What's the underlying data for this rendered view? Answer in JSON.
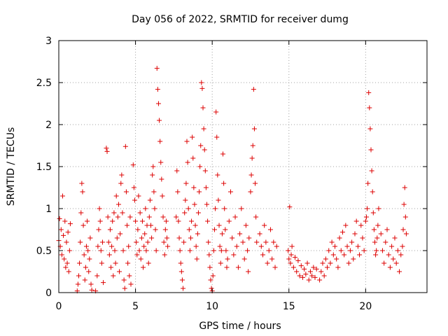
{
  "chart_data": {
    "type": "scatter",
    "title": "Day 056 of 2022, SRMTID for receiver dumg",
    "xlabel": "GPS time / hours",
    "ylabel": "SRMTID / TECUs",
    "xlim": [
      0,
      24
    ],
    "ylim": [
      0,
      3
    ],
    "xticks": [
      0,
      5,
      10,
      15,
      20
    ],
    "xtick_labels": [
      "0",
      "5",
      "10",
      "15",
      "20"
    ],
    "yticks": [
      0,
      0.5,
      1,
      1.5,
      2,
      2.5,
      3
    ],
    "ytick_labels": [
      "0",
      "0.5",
      "1",
      "1.5",
      "2",
      "2.5",
      "3"
    ],
    "grid": true,
    "marker": "plus",
    "color": "#dd0000",
    "series": [
      {
        "name": "SRMTID",
        "points": [
          [
            0.0,
            0.62
          ],
          [
            0.05,
            0.88
          ],
          [
            0.1,
            0.55
          ],
          [
            0.15,
            0.75
          ],
          [
            0.2,
            0.45
          ],
          [
            0.25,
            1.15
          ],
          [
            0.3,
            0.68
          ],
          [
            0.35,
            0.4
          ],
          [
            0.4,
            0.85
          ],
          [
            0.45,
            0.3
          ],
          [
            0.5,
            0.6
          ],
          [
            0.55,
            0.35
          ],
          [
            0.6,
            0.72
          ],
          [
            0.65,
            0.25
          ],
          [
            0.7,
            0.5
          ],
          [
            0.75,
            0.82
          ],
          [
            1.2,
            0.02
          ],
          [
            1.25,
            0.1
          ],
          [
            1.3,
            0.2
          ],
          [
            1.35,
            0.35
          ],
          [
            1.4,
            0.6
          ],
          [
            1.45,
            0.95
          ],
          [
            1.5,
            1.3
          ],
          [
            1.55,
            1.2
          ],
          [
            1.6,
            0.8
          ],
          [
            1.65,
            0.45
          ],
          [
            1.7,
            0.15
          ],
          [
            1.75,
            0.3
          ],
          [
            1.8,
            0.55
          ],
          [
            1.85,
            0.85
          ],
          [
            1.9,
            0.5
          ],
          [
            1.95,
            0.25
          ],
          [
            2.0,
            0.4
          ],
          [
            2.05,
            0.65
          ],
          [
            2.1,
            0.1
          ],
          [
            2.15,
            0.03
          ],
          [
            2.4,
            0.02
          ],
          [
            2.5,
            0.2
          ],
          [
            2.55,
            0.55
          ],
          [
            2.6,
            0.75
          ],
          [
            2.65,
            1.0
          ],
          [
            2.7,
            0.85
          ],
          [
            2.75,
            0.5
          ],
          [
            2.8,
            0.35
          ],
          [
            2.85,
            0.6
          ],
          [
            2.9,
            0.12
          ],
          [
            3.1,
            1.72
          ],
          [
            3.15,
            1.68
          ],
          [
            3.2,
            0.9
          ],
          [
            3.25,
            0.6
          ],
          [
            3.3,
            0.45
          ],
          [
            3.35,
            0.75
          ],
          [
            3.4,
            0.3
          ],
          [
            3.45,
            0.55
          ],
          [
            3.5,
            0.85
          ],
          [
            3.55,
            0.2
          ],
          [
            3.6,
            0.95
          ],
          [
            3.65,
            0.5
          ],
          [
            3.7,
            0.35
          ],
          [
            3.75,
            1.15
          ],
          [
            3.8,
            0.65
          ],
          [
            3.85,
            0.9
          ],
          [
            3.9,
            1.05
          ],
          [
            3.95,
            0.25
          ],
          [
            4.0,
            0.7
          ],
          [
            4.05,
            1.3
          ],
          [
            4.1,
            1.4
          ],
          [
            4.15,
            0.95
          ],
          [
            4.2,
            0.5
          ],
          [
            4.25,
            0.15
          ],
          [
            4.3,
            0.05
          ],
          [
            4.35,
            1.74
          ],
          [
            4.4,
            1.2
          ],
          [
            4.45,
            0.8
          ],
          [
            4.5,
            0.35
          ],
          [
            4.55,
            0.55
          ],
          [
            4.6,
            0.2
          ],
          [
            4.65,
            0.9
          ],
          [
            4.7,
            0.1
          ],
          [
            4.85,
            1.52
          ],
          [
            4.9,
            1.25
          ],
          [
            4.95,
            1.1
          ],
          [
            5.0,
            0.85
          ],
          [
            5.05,
            0.6
          ],
          [
            5.1,
            0.45
          ],
          [
            5.15,
            0.75
          ],
          [
            5.2,
            1.15
          ],
          [
            5.25,
            0.5
          ],
          [
            5.3,
            0.95
          ],
          [
            5.35,
            0.4
          ],
          [
            5.4,
            0.65
          ],
          [
            5.45,
            0.85
          ],
          [
            5.5,
            0.3
          ],
          [
            5.55,
            0.55
          ],
          [
            5.6,
            0.7
          ],
          [
            5.65,
            1.0
          ],
          [
            5.7,
            0.5
          ],
          [
            5.75,
            0.8
          ],
          [
            5.8,
            0.6
          ],
          [
            5.85,
            0.35
          ],
          [
            5.9,
            0.9
          ],
          [
            5.95,
            1.1
          ],
          [
            6.0,
            0.8
          ],
          [
            6.05,
            0.65
          ],
          [
            6.1,
            1.4
          ],
          [
            6.15,
            1.5
          ],
          [
            6.2,
            1.2
          ],
          [
            6.25,
            1.0
          ],
          [
            6.3,
            0.75
          ],
          [
            6.35,
            0.5
          ],
          [
            6.4,
            2.67
          ],
          [
            6.45,
            2.42
          ],
          [
            6.5,
            2.25
          ],
          [
            6.55,
            2.05
          ],
          [
            6.6,
            1.8
          ],
          [
            6.65,
            1.55
          ],
          [
            6.7,
            1.35
          ],
          [
            6.75,
            1.15
          ],
          [
            6.8,
            0.9
          ],
          [
            6.85,
            0.6
          ],
          [
            6.9,
            0.45
          ],
          [
            6.95,
            0.75
          ],
          [
            7.0,
            0.85
          ],
          [
            7.05,
            0.65
          ],
          [
            7.1,
            0.55
          ],
          [
            7.65,
            0.9
          ],
          [
            7.7,
            1.45
          ],
          [
            7.75,
            1.2
          ],
          [
            7.8,
            0.85
          ],
          [
            7.85,
            0.65
          ],
          [
            7.9,
            0.5
          ],
          [
            7.95,
            0.35
          ],
          [
            8.0,
            0.25
          ],
          [
            8.05,
            0.15
          ],
          [
            8.1,
            0.05
          ],
          [
            8.15,
            0.6
          ],
          [
            8.2,
            0.95
          ],
          [
            8.25,
            1.1
          ],
          [
            8.3,
            1.3
          ],
          [
            8.35,
            1.8
          ],
          [
            8.4,
            1.55
          ],
          [
            8.45,
            1.0
          ],
          [
            8.5,
            0.75
          ],
          [
            8.55,
            0.5
          ],
          [
            8.6,
            0.65
          ],
          [
            8.65,
            0.85
          ],
          [
            8.7,
            1.85
          ],
          [
            8.75,
            1.6
          ],
          [
            8.8,
            1.25
          ],
          [
            8.85,
            1.05
          ],
          [
            8.9,
            0.8
          ],
          [
            8.95,
            0.55
          ],
          [
            9.0,
            0.4
          ],
          [
            9.05,
            0.7
          ],
          [
            9.1,
            0.95
          ],
          [
            9.15,
            1.2
          ],
          [
            9.2,
            1.5
          ],
          [
            9.25,
            1.75
          ],
          [
            9.3,
            2.5
          ],
          [
            9.35,
            2.43
          ],
          [
            9.4,
            2.2
          ],
          [
            9.45,
            1.95
          ],
          [
            9.5,
            1.7
          ],
          [
            9.55,
            1.45
          ],
          [
            9.6,
            1.25
          ],
          [
            9.65,
            1.05
          ],
          [
            9.7,
            0.85
          ],
          [
            9.75,
            0.6
          ],
          [
            9.8,
            0.45
          ],
          [
            9.85,
            0.3
          ],
          [
            9.9,
            0.15
          ],
          [
            9.95,
            0.05
          ],
          [
            10.0,
            0.02
          ],
          [
            10.05,
            0.2
          ],
          [
            10.1,
            0.5
          ],
          [
            10.15,
            0.75
          ],
          [
            10.2,
            1.0
          ],
          [
            10.25,
            2.15
          ],
          [
            10.3,
            1.85
          ],
          [
            10.35,
            1.4
          ],
          [
            10.4,
            1.1
          ],
          [
            10.45,
            0.8
          ],
          [
            10.5,
            0.55
          ],
          [
            10.55,
            0.35
          ],
          [
            10.6,
            0.5
          ],
          [
            10.65,
            0.7
          ],
          [
            10.7,
            1.65
          ],
          [
            10.75,
            1.3
          ],
          [
            10.8,
            1.0
          ],
          [
            10.85,
            0.75
          ],
          [
            10.9,
            0.5
          ],
          [
            10.95,
            0.3
          ],
          [
            11.0,
            0.4
          ],
          [
            11.1,
            0.85
          ],
          [
            11.2,
            1.2
          ],
          [
            11.3,
            0.65
          ],
          [
            11.4,
            0.45
          ],
          [
            11.5,
            0.9
          ],
          [
            11.6,
            0.55
          ],
          [
            11.7,
            0.3
          ],
          [
            11.8,
            0.7
          ],
          [
            11.9,
            1.0
          ],
          [
            12.0,
            0.6
          ],
          [
            12.1,
            0.4
          ],
          [
            12.2,
            0.8
          ],
          [
            12.3,
            0.5
          ],
          [
            12.35,
            0.25
          ],
          [
            12.4,
            0.65
          ],
          [
            12.5,
            1.2
          ],
          [
            12.55,
            1.4
          ],
          [
            12.6,
            1.6
          ],
          [
            12.65,
            1.75
          ],
          [
            12.7,
            2.42
          ],
          [
            12.75,
            1.95
          ],
          [
            12.8,
            1.3
          ],
          [
            12.85,
            0.9
          ],
          [
            12.9,
            0.6
          ],
          [
            13.1,
            0.7
          ],
          [
            13.2,
            0.55
          ],
          [
            13.3,
            0.45
          ],
          [
            13.4,
            0.8
          ],
          [
            13.5,
            0.6
          ],
          [
            13.6,
            0.35
          ],
          [
            13.7,
            0.5
          ],
          [
            13.8,
            0.75
          ],
          [
            13.9,
            0.4
          ],
          [
            14.0,
            0.6
          ],
          [
            14.1,
            0.3
          ],
          [
            14.2,
            0.55
          ],
          [
            14.95,
            0.5
          ],
          [
            15.0,
            0.4
          ],
          [
            15.05,
            1.02
          ],
          [
            15.1,
            0.35
          ],
          [
            15.15,
            0.45
          ],
          [
            15.2,
            0.55
          ],
          [
            15.3,
            0.3
          ],
          [
            15.4,
            0.42
          ],
          [
            15.5,
            0.25
          ],
          [
            15.6,
            0.38
          ],
          [
            15.7,
            0.2
          ],
          [
            15.8,
            0.32
          ],
          [
            15.9,
            0.18
          ],
          [
            16.0,
            0.28
          ],
          [
            16.1,
            0.22
          ],
          [
            16.2,
            0.35
          ],
          [
            16.3,
            0.15
          ],
          [
            16.4,
            0.25
          ],
          [
            16.5,
            0.2
          ],
          [
            16.6,
            0.3
          ],
          [
            16.7,
            0.18
          ],
          [
            16.8,
            0.28
          ],
          [
            17.0,
            0.15
          ],
          [
            17.1,
            0.25
          ],
          [
            17.2,
            0.35
          ],
          [
            17.3,
            0.2
          ],
          [
            17.4,
            0.4
          ],
          [
            17.5,
            0.3
          ],
          [
            17.6,
            0.5
          ],
          [
            17.7,
            0.35
          ],
          [
            17.8,
            0.6
          ],
          [
            17.9,
            0.45
          ],
          [
            18.0,
            0.55
          ],
          [
            18.1,
            0.4
          ],
          [
            18.2,
            0.3
          ],
          [
            18.3,
            0.65
          ],
          [
            18.4,
            0.5
          ],
          [
            18.5,
            0.72
          ],
          [
            18.6,
            0.45
          ],
          [
            18.7,
            0.8
          ],
          [
            18.8,
            0.55
          ],
          [
            18.9,
            0.35
          ],
          [
            19.0,
            0.5
          ],
          [
            19.1,
            0.6
          ],
          [
            19.2,
            0.4
          ],
          [
            19.3,
            0.7
          ],
          [
            19.4,
            0.85
          ],
          [
            19.5,
            0.55
          ],
          [
            19.6,
            0.45
          ],
          [
            19.7,
            0.8
          ],
          [
            19.8,
            0.65
          ],
          [
            19.9,
            0.5
          ],
          [
            20.0,
            0.85
          ],
          [
            20.05,
            0.9
          ],
          [
            20.1,
            1.0
          ],
          [
            20.15,
            1.3
          ],
          [
            20.2,
            2.38
          ],
          [
            20.25,
            2.2
          ],
          [
            20.3,
            1.95
          ],
          [
            20.35,
            1.7
          ],
          [
            20.4,
            1.45
          ],
          [
            20.45,
            1.2
          ],
          [
            20.5,
            0.95
          ],
          [
            20.55,
            0.75
          ],
          [
            20.6,
            0.6
          ],
          [
            20.65,
            0.45
          ],
          [
            20.7,
            0.5
          ],
          [
            20.75,
            0.65
          ],
          [
            20.8,
            0.8
          ],
          [
            20.85,
            1.0
          ],
          [
            21.0,
            0.7
          ],
          [
            21.1,
            0.5
          ],
          [
            21.2,
            0.35
          ],
          [
            21.3,
            0.6
          ],
          [
            21.4,
            0.75
          ],
          [
            21.5,
            0.45
          ],
          [
            21.6,
            0.3
          ],
          [
            21.7,
            0.55
          ],
          [
            21.8,
            0.4
          ],
          [
            21.9,
            0.65
          ],
          [
            22.0,
            0.35
          ],
          [
            22.1,
            0.5
          ],
          [
            22.2,
            0.25
          ],
          [
            22.3,
            0.45
          ],
          [
            22.4,
            0.55
          ],
          [
            22.45,
            0.75
          ],
          [
            22.5,
            1.05
          ],
          [
            22.55,
            1.25
          ],
          [
            22.6,
            0.9
          ],
          [
            22.65,
            0.7
          ]
        ]
      }
    ]
  }
}
